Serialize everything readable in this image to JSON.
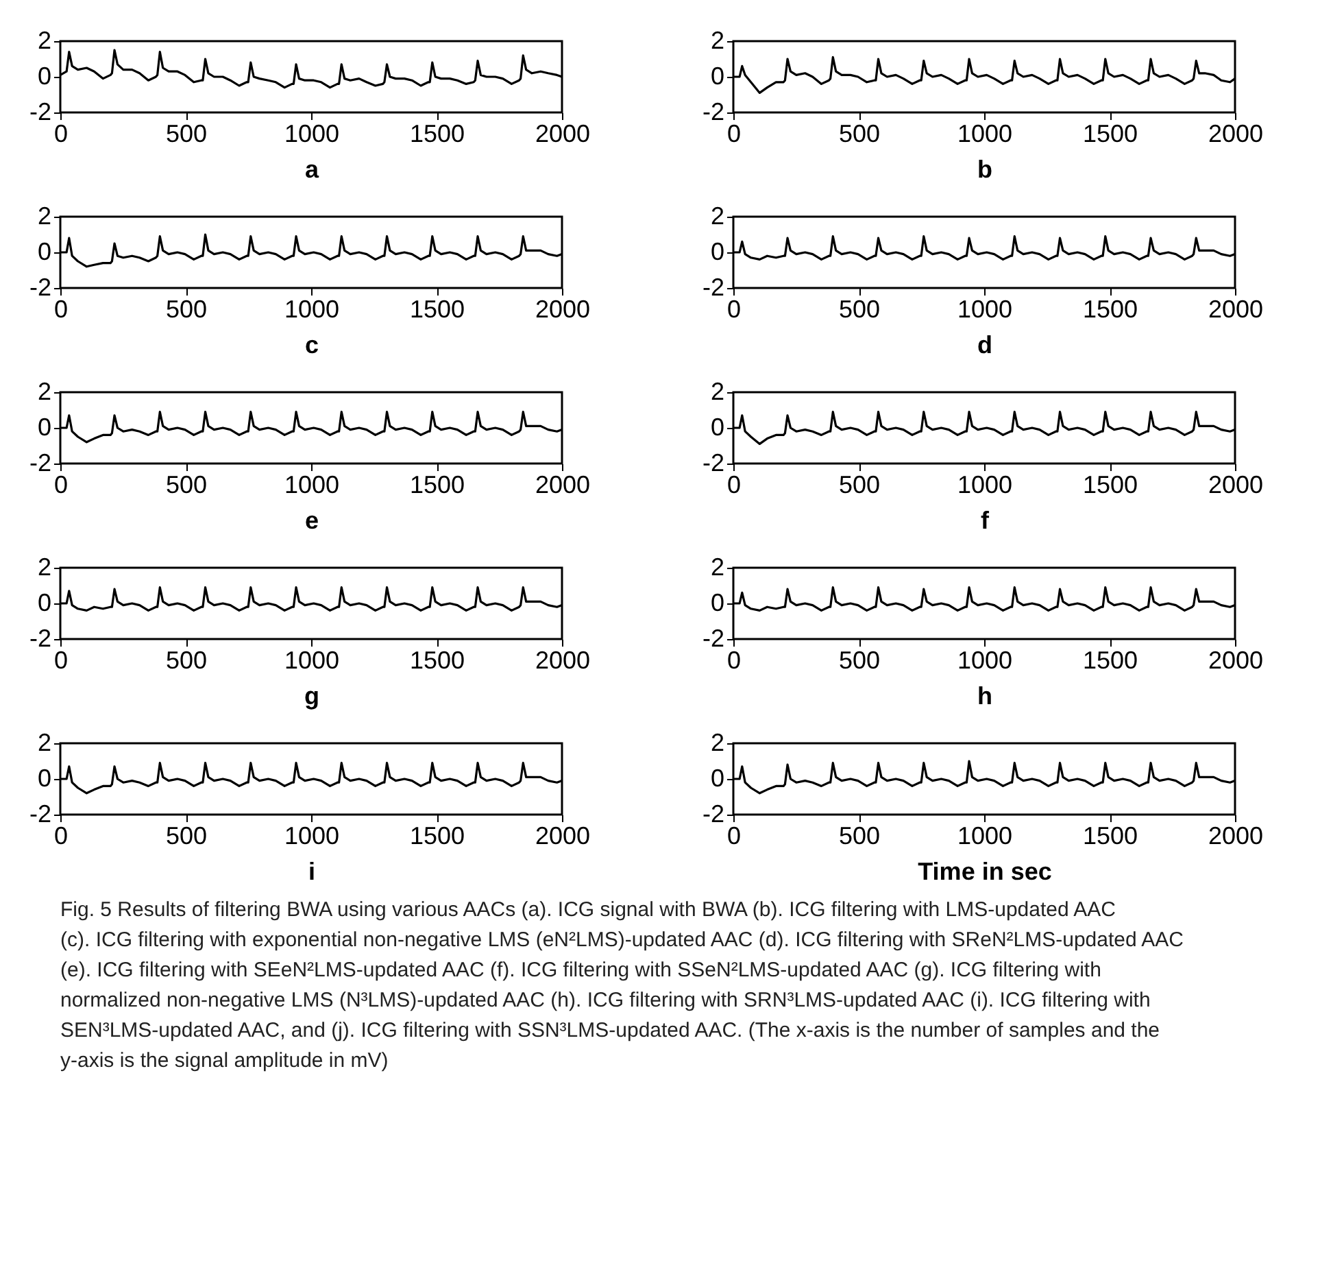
{
  "chart_data": [
    {
      "type": "line",
      "xlabel": "a",
      "x": [
        0,
        25,
        35,
        47,
        70,
        105,
        135,
        170,
        200,
        206,
        216,
        228,
        251,
        286,
        316,
        351,
        381,
        387,
        397,
        409,
        432,
        467,
        497,
        532,
        562,
        568,
        578,
        590,
        613,
        648,
        678,
        713,
        743,
        749,
        759,
        771,
        794,
        829,
        859,
        894,
        924,
        930,
        940,
        952,
        975,
        1010,
        1040,
        1075,
        1105,
        1111,
        1121,
        1133,
        1156,
        1191,
        1221,
        1256,
        1286,
        1292,
        1302,
        1314,
        1337,
        1372,
        1402,
        1437,
        1467,
        1473,
        1483,
        1495,
        1518,
        1553,
        1583,
        1618,
        1648,
        1654,
        1664,
        1676,
        1699,
        1734,
        1764,
        1799,
        1829,
        1835,
        1845,
        1857,
        1880,
        1915,
        1945,
        1980,
        2000
      ],
      "xlim": [
        0,
        2000
      ],
      "xticks": [
        0,
        500,
        1000,
        1500,
        2000
      ],
      "ylim": [
        -2,
        2
      ],
      "yticks": [
        -2,
        0,
        2
      ],
      "series": [
        {
          "color": "#000000",
          "values": [
            0.1,
            0.3,
            1.4,
            0.6,
            0.4,
            0.5,
            0.3,
            -0.1,
            0.1,
            0.2,
            1.5,
            0.7,
            0.4,
            0.4,
            0.2,
            -0.2,
            0.0,
            0.1,
            1.4,
            0.5,
            0.3,
            0.3,
            0.1,
            -0.3,
            -0.2,
            -0.2,
            1.0,
            0.2,
            0.0,
            0.0,
            -0.2,
            -0.5,
            -0.3,
            -0.3,
            0.8,
            0.0,
            -0.1,
            -0.2,
            -0.3,
            -0.6,
            -0.4,
            -0.4,
            0.7,
            -0.1,
            -0.2,
            -0.2,
            -0.3,
            -0.6,
            -0.4,
            -0.4,
            0.7,
            -0.1,
            -0.2,
            -0.1,
            -0.3,
            -0.5,
            -0.4,
            -0.3,
            0.7,
            0.0,
            -0.1,
            -0.1,
            -0.2,
            -0.5,
            -0.3,
            -0.3,
            0.8,
            0.0,
            -0.1,
            -0.1,
            -0.2,
            -0.4,
            -0.3,
            -0.2,
            0.9,
            0.1,
            0.0,
            0.0,
            -0.1,
            -0.4,
            -0.2,
            -0.1,
            1.2,
            0.4,
            0.2,
            0.3,
            0.2,
            0.1,
            0.0
          ]
        }
      ]
    },
    {
      "type": "line",
      "xlabel": "b",
      "x": [
        0,
        25,
        35,
        47,
        70,
        105,
        135,
        170,
        200,
        206,
        216,
        228,
        251,
        286,
        316,
        351,
        381,
        387,
        397,
        409,
        432,
        467,
        497,
        532,
        562,
        568,
        578,
        590,
        613,
        648,
        678,
        713,
        743,
        749,
        759,
        771,
        794,
        829,
        859,
        894,
        924,
        930,
        940,
        952,
        975,
        1010,
        1040,
        1075,
        1105,
        1111,
        1121,
        1133,
        1156,
        1191,
        1221,
        1256,
        1286,
        1292,
        1302,
        1314,
        1337,
        1372,
        1402,
        1437,
        1467,
        1473,
        1483,
        1495,
        1518,
        1553,
        1583,
        1618,
        1648,
        1654,
        1664,
        1676,
        1699,
        1734,
        1764,
        1799,
        1829,
        1835,
        1845,
        1857,
        1880,
        1915,
        1945,
        1980,
        2000
      ],
      "xlim": [
        0,
        2000
      ],
      "xticks": [
        0,
        500,
        1000,
        1500,
        2000
      ],
      "ylim": [
        -2,
        2
      ],
      "yticks": [
        -2,
        0,
        2
      ],
      "series": [
        {
          "color": "#000000",
          "values": [
            0.0,
            0.0,
            0.6,
            0.1,
            -0.3,
            -0.9,
            -0.6,
            -0.3,
            -0.3,
            -0.2,
            1.0,
            0.3,
            0.1,
            0.2,
            0.0,
            -0.4,
            -0.2,
            -0.1,
            1.1,
            0.3,
            0.1,
            0.1,
            0.0,
            -0.3,
            -0.2,
            -0.2,
            1.0,
            0.2,
            0.0,
            0.1,
            -0.1,
            -0.4,
            -0.2,
            -0.2,
            0.9,
            0.2,
            0.0,
            0.1,
            -0.1,
            -0.4,
            -0.2,
            -0.2,
            1.0,
            0.2,
            0.0,
            0.1,
            -0.1,
            -0.4,
            -0.2,
            -0.2,
            0.9,
            0.2,
            0.0,
            0.1,
            -0.1,
            -0.4,
            -0.2,
            -0.2,
            1.0,
            0.2,
            0.0,
            0.1,
            -0.1,
            -0.4,
            -0.2,
            -0.2,
            1.0,
            0.2,
            0.0,
            0.1,
            -0.1,
            -0.4,
            -0.2,
            -0.2,
            1.0,
            0.2,
            0.0,
            0.1,
            -0.1,
            -0.4,
            -0.2,
            -0.1,
            0.9,
            0.2,
            0.2,
            0.1,
            -0.2,
            -0.3,
            -0.1
          ]
        }
      ]
    },
    {
      "type": "line",
      "xlabel": "c",
      "x": [
        0,
        25,
        35,
        47,
        70,
        105,
        135,
        170,
        200,
        206,
        216,
        228,
        251,
        286,
        316,
        351,
        381,
        387,
        397,
        409,
        432,
        467,
        497,
        532,
        562,
        568,
        578,
        590,
        613,
        648,
        678,
        713,
        743,
        749,
        759,
        771,
        794,
        829,
        859,
        894,
        924,
        930,
        940,
        952,
        975,
        1010,
        1040,
        1075,
        1105,
        1111,
        1121,
        1133,
        1156,
        1191,
        1221,
        1256,
        1286,
        1292,
        1302,
        1314,
        1337,
        1372,
        1402,
        1437,
        1467,
        1473,
        1483,
        1495,
        1518,
        1553,
        1583,
        1618,
        1648,
        1654,
        1664,
        1676,
        1699,
        1734,
        1764,
        1799,
        1829,
        1835,
        1845,
        1857,
        1880,
        1915,
        1945,
        1980,
        2000
      ],
      "xlim": [
        0,
        2000
      ],
      "xticks": [
        0,
        500,
        1000,
        1500,
        2000
      ],
      "ylim": [
        -2,
        2
      ],
      "yticks": [
        -2,
        0,
        2
      ],
      "series": [
        {
          "color": "#000000",
          "values": [
            0.0,
            0.0,
            0.8,
            -0.2,
            -0.5,
            -0.8,
            -0.7,
            -0.6,
            -0.6,
            -0.5,
            0.5,
            -0.2,
            -0.3,
            -0.2,
            -0.3,
            -0.5,
            -0.3,
            -0.2,
            0.9,
            0.1,
            -0.1,
            0.0,
            -0.1,
            -0.4,
            -0.2,
            -0.2,
            1.0,
            0.1,
            -0.1,
            0.0,
            -0.1,
            -0.4,
            -0.2,
            -0.2,
            0.9,
            0.1,
            -0.1,
            0.0,
            -0.1,
            -0.4,
            -0.2,
            -0.2,
            0.9,
            0.1,
            -0.1,
            0.0,
            -0.1,
            -0.4,
            -0.2,
            -0.2,
            0.9,
            0.1,
            -0.1,
            0.0,
            -0.1,
            -0.4,
            -0.2,
            -0.2,
            0.9,
            0.1,
            -0.1,
            0.0,
            -0.1,
            -0.4,
            -0.2,
            -0.2,
            0.9,
            0.1,
            -0.1,
            0.0,
            -0.1,
            -0.4,
            -0.2,
            -0.2,
            0.9,
            0.1,
            -0.1,
            0.0,
            -0.1,
            -0.4,
            -0.2,
            -0.1,
            0.9,
            0.1,
            0.1,
            0.1,
            -0.1,
            -0.2,
            -0.1
          ]
        }
      ]
    },
    {
      "type": "line",
      "xlabel": "d",
      "x": [
        0,
        25,
        35,
        47,
        70,
        105,
        135,
        170,
        200,
        206,
        216,
        228,
        251,
        286,
        316,
        351,
        381,
        387,
        397,
        409,
        432,
        467,
        497,
        532,
        562,
        568,
        578,
        590,
        613,
        648,
        678,
        713,
        743,
        749,
        759,
        771,
        794,
        829,
        859,
        894,
        924,
        930,
        940,
        952,
        975,
        1010,
        1040,
        1075,
        1105,
        1111,
        1121,
        1133,
        1156,
        1191,
        1221,
        1256,
        1286,
        1292,
        1302,
        1314,
        1337,
        1372,
        1402,
        1437,
        1467,
        1473,
        1483,
        1495,
        1518,
        1553,
        1583,
        1618,
        1648,
        1654,
        1664,
        1676,
        1699,
        1734,
        1764,
        1799,
        1829,
        1835,
        1845,
        1857,
        1880,
        1915,
        1945,
        1980,
        2000
      ],
      "xlim": [
        0,
        2000
      ],
      "xticks": [
        0,
        500,
        1000,
        1500,
        2000
      ],
      "ylim": [
        -2,
        2
      ],
      "yticks": [
        -2,
        0,
        2
      ],
      "series": [
        {
          "color": "#000000",
          "values": [
            0.0,
            0.0,
            0.6,
            -0.1,
            -0.3,
            -0.4,
            -0.2,
            -0.3,
            -0.2,
            -0.2,
            0.8,
            0.1,
            -0.1,
            0.0,
            -0.1,
            -0.4,
            -0.2,
            -0.2,
            0.9,
            0.1,
            -0.1,
            0.0,
            -0.1,
            -0.4,
            -0.2,
            -0.2,
            0.8,
            0.1,
            -0.1,
            0.0,
            -0.1,
            -0.4,
            -0.2,
            -0.2,
            0.9,
            0.1,
            -0.1,
            0.0,
            -0.1,
            -0.4,
            -0.2,
            -0.2,
            0.8,
            0.1,
            -0.1,
            0.0,
            -0.1,
            -0.4,
            -0.2,
            -0.2,
            0.9,
            0.1,
            -0.1,
            0.0,
            -0.1,
            -0.4,
            -0.2,
            -0.2,
            0.8,
            0.1,
            -0.1,
            0.0,
            -0.1,
            -0.4,
            -0.2,
            -0.2,
            0.9,
            0.1,
            -0.1,
            0.0,
            -0.1,
            -0.4,
            -0.2,
            -0.2,
            0.8,
            0.1,
            -0.1,
            0.0,
            -0.1,
            -0.4,
            -0.2,
            -0.1,
            0.8,
            0.1,
            0.1,
            0.1,
            -0.1,
            -0.2,
            -0.1
          ]
        }
      ]
    },
    {
      "type": "line",
      "xlabel": "e",
      "x": [
        0,
        25,
        35,
        47,
        70,
        105,
        135,
        170,
        200,
        206,
        216,
        228,
        251,
        286,
        316,
        351,
        381,
        387,
        397,
        409,
        432,
        467,
        497,
        532,
        562,
        568,
        578,
        590,
        613,
        648,
        678,
        713,
        743,
        749,
        759,
        771,
        794,
        829,
        859,
        894,
        924,
        930,
        940,
        952,
        975,
        1010,
        1040,
        1075,
        1105,
        1111,
        1121,
        1133,
        1156,
        1191,
        1221,
        1256,
        1286,
        1292,
        1302,
        1314,
        1337,
        1372,
        1402,
        1437,
        1467,
        1473,
        1483,
        1495,
        1518,
        1553,
        1583,
        1618,
        1648,
        1654,
        1664,
        1676,
        1699,
        1734,
        1764,
        1799,
        1829,
        1835,
        1845,
        1857,
        1880,
        1915,
        1945,
        1980,
        2000
      ],
      "xlim": [
        0,
        2000
      ],
      "xticks": [
        0,
        500,
        1000,
        1500,
        2000
      ],
      "ylim": [
        -2,
        2
      ],
      "yticks": [
        -2,
        0,
        2
      ],
      "series": [
        {
          "color": "#000000",
          "values": [
            0.0,
            0.0,
            0.7,
            -0.2,
            -0.5,
            -0.8,
            -0.6,
            -0.4,
            -0.4,
            -0.3,
            0.7,
            0.0,
            -0.2,
            -0.1,
            -0.2,
            -0.4,
            -0.2,
            -0.2,
            0.9,
            0.1,
            -0.1,
            0.0,
            -0.1,
            -0.4,
            -0.2,
            -0.2,
            0.9,
            0.1,
            -0.1,
            0.0,
            -0.1,
            -0.4,
            -0.2,
            -0.2,
            0.9,
            0.1,
            -0.1,
            0.0,
            -0.1,
            -0.4,
            -0.2,
            -0.2,
            0.9,
            0.1,
            -0.1,
            0.0,
            -0.1,
            -0.4,
            -0.2,
            -0.2,
            0.9,
            0.1,
            -0.1,
            0.0,
            -0.1,
            -0.4,
            -0.2,
            -0.2,
            0.9,
            0.1,
            -0.1,
            0.0,
            -0.1,
            -0.4,
            -0.2,
            -0.2,
            0.9,
            0.1,
            -0.1,
            0.0,
            -0.1,
            -0.4,
            -0.2,
            -0.2,
            0.9,
            0.1,
            -0.1,
            0.0,
            -0.1,
            -0.4,
            -0.2,
            -0.1,
            0.9,
            0.1,
            0.1,
            0.1,
            -0.1,
            -0.2,
            -0.1
          ]
        }
      ]
    },
    {
      "type": "line",
      "xlabel": "f",
      "x": [
        0,
        25,
        35,
        47,
        70,
        105,
        135,
        170,
        200,
        206,
        216,
        228,
        251,
        286,
        316,
        351,
        381,
        387,
        397,
        409,
        432,
        467,
        497,
        532,
        562,
        568,
        578,
        590,
        613,
        648,
        678,
        713,
        743,
        749,
        759,
        771,
        794,
        829,
        859,
        894,
        924,
        930,
        940,
        952,
        975,
        1010,
        1040,
        1075,
        1105,
        1111,
        1121,
        1133,
        1156,
        1191,
        1221,
        1256,
        1286,
        1292,
        1302,
        1314,
        1337,
        1372,
        1402,
        1437,
        1467,
        1473,
        1483,
        1495,
        1518,
        1553,
        1583,
        1618,
        1648,
        1654,
        1664,
        1676,
        1699,
        1734,
        1764,
        1799,
        1829,
        1835,
        1845,
        1857,
        1880,
        1915,
        1945,
        1980,
        2000
      ],
      "xlim": [
        0,
        2000
      ],
      "xticks": [
        0,
        500,
        1000,
        1500,
        2000
      ],
      "ylim": [
        -2,
        2
      ],
      "yticks": [
        -2,
        0,
        2
      ],
      "series": [
        {
          "color": "#000000",
          "values": [
            0.0,
            0.0,
            0.7,
            -0.2,
            -0.5,
            -0.9,
            -0.6,
            -0.4,
            -0.4,
            -0.3,
            0.7,
            0.0,
            -0.2,
            -0.1,
            -0.2,
            -0.4,
            -0.2,
            -0.2,
            0.9,
            0.1,
            -0.1,
            0.0,
            -0.1,
            -0.4,
            -0.2,
            -0.2,
            0.9,
            0.1,
            -0.1,
            0.0,
            -0.1,
            -0.4,
            -0.2,
            -0.2,
            0.9,
            0.1,
            -0.1,
            0.0,
            -0.1,
            -0.4,
            -0.2,
            -0.2,
            0.9,
            0.1,
            -0.1,
            0.0,
            -0.1,
            -0.4,
            -0.2,
            -0.2,
            0.9,
            0.1,
            -0.1,
            0.0,
            -0.1,
            -0.4,
            -0.2,
            -0.2,
            0.9,
            0.1,
            -0.1,
            0.0,
            -0.1,
            -0.4,
            -0.2,
            -0.2,
            0.9,
            0.1,
            -0.1,
            0.0,
            -0.1,
            -0.4,
            -0.2,
            -0.2,
            0.9,
            0.1,
            -0.1,
            0.0,
            -0.1,
            -0.4,
            -0.2,
            -0.1,
            0.9,
            0.1,
            0.1,
            0.1,
            -0.1,
            -0.2,
            -0.1
          ]
        }
      ]
    },
    {
      "type": "line",
      "xlabel": "g",
      "x": [
        0,
        25,
        35,
        47,
        70,
        105,
        135,
        170,
        200,
        206,
        216,
        228,
        251,
        286,
        316,
        351,
        381,
        387,
        397,
        409,
        432,
        467,
        497,
        532,
        562,
        568,
        578,
        590,
        613,
        648,
        678,
        713,
        743,
        749,
        759,
        771,
        794,
        829,
        859,
        894,
        924,
        930,
        940,
        952,
        975,
        1010,
        1040,
        1075,
        1105,
        1111,
        1121,
        1133,
        1156,
        1191,
        1221,
        1256,
        1286,
        1292,
        1302,
        1314,
        1337,
        1372,
        1402,
        1437,
        1467,
        1473,
        1483,
        1495,
        1518,
        1553,
        1583,
        1618,
        1648,
        1654,
        1664,
        1676,
        1699,
        1734,
        1764,
        1799,
        1829,
        1835,
        1845,
        1857,
        1880,
        1915,
        1945,
        1980,
        2000
      ],
      "xlim": [
        0,
        2000
      ],
      "xticks": [
        0,
        500,
        1000,
        1500,
        2000
      ],
      "ylim": [
        -2,
        2
      ],
      "yticks": [
        -2,
        0,
        2
      ],
      "series": [
        {
          "color": "#000000",
          "values": [
            0.0,
            0.0,
            0.7,
            -0.1,
            -0.3,
            -0.4,
            -0.2,
            -0.3,
            -0.2,
            -0.2,
            0.8,
            0.1,
            -0.1,
            0.0,
            -0.1,
            -0.4,
            -0.2,
            -0.2,
            0.9,
            0.1,
            -0.1,
            0.0,
            -0.1,
            -0.4,
            -0.2,
            -0.2,
            0.9,
            0.1,
            -0.1,
            0.0,
            -0.1,
            -0.4,
            -0.2,
            -0.2,
            0.9,
            0.1,
            -0.1,
            0.0,
            -0.1,
            -0.4,
            -0.2,
            -0.2,
            0.9,
            0.1,
            -0.1,
            0.0,
            -0.1,
            -0.4,
            -0.2,
            -0.2,
            0.9,
            0.1,
            -0.1,
            0.0,
            -0.1,
            -0.4,
            -0.2,
            -0.2,
            0.9,
            0.1,
            -0.1,
            0.0,
            -0.1,
            -0.4,
            -0.2,
            -0.2,
            0.9,
            0.1,
            -0.1,
            0.0,
            -0.1,
            -0.4,
            -0.2,
            -0.2,
            0.9,
            0.1,
            -0.1,
            0.0,
            -0.1,
            -0.4,
            -0.2,
            -0.1,
            0.9,
            0.1,
            0.1,
            0.1,
            -0.1,
            -0.2,
            -0.1
          ]
        }
      ]
    },
    {
      "type": "line",
      "xlabel": "h",
      "x": [
        0,
        25,
        35,
        47,
        70,
        105,
        135,
        170,
        200,
        206,
        216,
        228,
        251,
        286,
        316,
        351,
        381,
        387,
        397,
        409,
        432,
        467,
        497,
        532,
        562,
        568,
        578,
        590,
        613,
        648,
        678,
        713,
        743,
        749,
        759,
        771,
        794,
        829,
        859,
        894,
        924,
        930,
        940,
        952,
        975,
        1010,
        1040,
        1075,
        1105,
        1111,
        1121,
        1133,
        1156,
        1191,
        1221,
        1256,
        1286,
        1292,
        1302,
        1314,
        1337,
        1372,
        1402,
        1437,
        1467,
        1473,
        1483,
        1495,
        1518,
        1553,
        1583,
        1618,
        1648,
        1654,
        1664,
        1676,
        1699,
        1734,
        1764,
        1799,
        1829,
        1835,
        1845,
        1857,
        1880,
        1915,
        1945,
        1980,
        2000
      ],
      "xlim": [
        0,
        2000
      ],
      "xticks": [
        0,
        500,
        1000,
        1500,
        2000
      ],
      "ylim": [
        -2,
        2
      ],
      "yticks": [
        -2,
        0,
        2
      ],
      "series": [
        {
          "color": "#000000",
          "values": [
            0.0,
            0.0,
            0.6,
            -0.1,
            -0.3,
            -0.4,
            -0.2,
            -0.3,
            -0.2,
            -0.2,
            0.8,
            0.1,
            -0.1,
            0.0,
            -0.1,
            -0.4,
            -0.2,
            -0.2,
            0.9,
            0.1,
            -0.1,
            0.0,
            -0.1,
            -0.4,
            -0.2,
            -0.2,
            0.9,
            0.1,
            -0.1,
            0.0,
            -0.1,
            -0.4,
            -0.2,
            -0.2,
            0.8,
            0.1,
            -0.1,
            0.0,
            -0.1,
            -0.4,
            -0.2,
            -0.2,
            0.9,
            0.1,
            -0.1,
            0.0,
            -0.1,
            -0.4,
            -0.2,
            -0.2,
            0.9,
            0.1,
            -0.1,
            0.0,
            -0.1,
            -0.4,
            -0.2,
            -0.2,
            0.8,
            0.1,
            -0.1,
            0.0,
            -0.1,
            -0.4,
            -0.2,
            -0.2,
            0.9,
            0.1,
            -0.1,
            0.0,
            -0.1,
            -0.4,
            -0.2,
            -0.2,
            0.9,
            0.1,
            -0.1,
            0.0,
            -0.1,
            -0.4,
            -0.2,
            -0.1,
            0.8,
            0.1,
            0.1,
            0.1,
            -0.1,
            -0.2,
            -0.1
          ]
        }
      ]
    },
    {
      "type": "line",
      "xlabel": "i",
      "x": [
        0,
        25,
        35,
        47,
        70,
        105,
        135,
        170,
        200,
        206,
        216,
        228,
        251,
        286,
        316,
        351,
        381,
        387,
        397,
        409,
        432,
        467,
        497,
        532,
        562,
        568,
        578,
        590,
        613,
        648,
        678,
        713,
        743,
        749,
        759,
        771,
        794,
        829,
        859,
        894,
        924,
        930,
        940,
        952,
        975,
        1010,
        1040,
        1075,
        1105,
        1111,
        1121,
        1133,
        1156,
        1191,
        1221,
        1256,
        1286,
        1292,
        1302,
        1314,
        1337,
        1372,
        1402,
        1437,
        1467,
        1473,
        1483,
        1495,
        1518,
        1553,
        1583,
        1618,
        1648,
        1654,
        1664,
        1676,
        1699,
        1734,
        1764,
        1799,
        1829,
        1835,
        1845,
        1857,
        1880,
        1915,
        1945,
        1980,
        2000
      ],
      "xlim": [
        0,
        2000
      ],
      "xticks": [
        0,
        500,
        1000,
        1500,
        2000
      ],
      "ylim": [
        -2,
        2
      ],
      "yticks": [
        -2,
        0,
        2
      ],
      "series": [
        {
          "color": "#000000",
          "values": [
            0.0,
            0.0,
            0.7,
            -0.2,
            -0.5,
            -0.8,
            -0.6,
            -0.4,
            -0.4,
            -0.3,
            0.7,
            0.0,
            -0.2,
            -0.1,
            -0.2,
            -0.4,
            -0.2,
            -0.2,
            0.9,
            0.1,
            -0.1,
            0.0,
            -0.1,
            -0.4,
            -0.2,
            -0.2,
            0.9,
            0.1,
            -0.1,
            0.0,
            -0.1,
            -0.4,
            -0.2,
            -0.2,
            0.9,
            0.1,
            -0.1,
            0.0,
            -0.1,
            -0.4,
            -0.2,
            -0.2,
            0.9,
            0.1,
            -0.1,
            0.0,
            -0.1,
            -0.4,
            -0.2,
            -0.2,
            0.9,
            0.1,
            -0.1,
            0.0,
            -0.1,
            -0.4,
            -0.2,
            -0.2,
            0.9,
            0.1,
            -0.1,
            0.0,
            -0.1,
            -0.4,
            -0.2,
            -0.2,
            0.9,
            0.1,
            -0.1,
            0.0,
            -0.1,
            -0.4,
            -0.2,
            -0.2,
            0.9,
            0.1,
            -0.1,
            0.0,
            -0.1,
            -0.4,
            -0.2,
            -0.1,
            0.9,
            0.1,
            0.1,
            0.1,
            -0.1,
            -0.2,
            -0.1
          ]
        }
      ]
    },
    {
      "type": "line",
      "xlabel": "Time in sec",
      "x": [
        0,
        25,
        35,
        47,
        70,
        105,
        135,
        170,
        200,
        206,
        216,
        228,
        251,
        286,
        316,
        351,
        381,
        387,
        397,
        409,
        432,
        467,
        497,
        532,
        562,
        568,
        578,
        590,
        613,
        648,
        678,
        713,
        743,
        749,
        759,
        771,
        794,
        829,
        859,
        894,
        924,
        930,
        940,
        952,
        975,
        1010,
        1040,
        1075,
        1105,
        1111,
        1121,
        1133,
        1156,
        1191,
        1221,
        1256,
        1286,
        1292,
        1302,
        1314,
        1337,
        1372,
        1402,
        1437,
        1467,
        1473,
        1483,
        1495,
        1518,
        1553,
        1583,
        1618,
        1648,
        1654,
        1664,
        1676,
        1699,
        1734,
        1764,
        1799,
        1829,
        1835,
        1845,
        1857,
        1880,
        1915,
        1945,
        1980,
        2000
      ],
      "xlim": [
        0,
        2000
      ],
      "xticks": [
        0,
        500,
        1000,
        1500,
        2000
      ],
      "ylim": [
        -2,
        2
      ],
      "yticks": [
        -2,
        0,
        2
      ],
      "series": [
        {
          "color": "#000000",
          "values": [
            0.0,
            0.0,
            0.7,
            -0.2,
            -0.5,
            -0.8,
            -0.6,
            -0.4,
            -0.4,
            -0.3,
            0.8,
            0.0,
            -0.2,
            -0.1,
            -0.2,
            -0.4,
            -0.2,
            -0.2,
            0.9,
            0.1,
            -0.1,
            0.0,
            -0.1,
            -0.4,
            -0.2,
            -0.2,
            0.9,
            0.1,
            -0.1,
            0.0,
            -0.1,
            -0.4,
            -0.2,
            -0.2,
            0.9,
            0.1,
            -0.1,
            0.0,
            -0.1,
            -0.4,
            -0.2,
            -0.2,
            1.0,
            0.1,
            -0.1,
            0.0,
            -0.1,
            -0.4,
            -0.2,
            -0.2,
            0.9,
            0.1,
            -0.1,
            0.0,
            -0.1,
            -0.4,
            -0.2,
            -0.2,
            0.9,
            0.1,
            -0.1,
            0.0,
            -0.1,
            -0.4,
            -0.2,
            -0.2,
            0.9,
            0.1,
            -0.1,
            0.0,
            -0.1,
            -0.4,
            -0.2,
            -0.2,
            0.9,
            0.1,
            -0.1,
            0.0,
            -0.1,
            -0.4,
            -0.2,
            -0.1,
            0.9,
            0.1,
            0.1,
            0.1,
            -0.1,
            -0.2,
            -0.1
          ]
        }
      ],
      "annotations": [
        "Fig. 5  Results of filtering BWA using various AACs (a). ICG signal with BWA (b). ICG filtering with LMS-updated AAC (c). ICG filtering with exponential non-negative LMS (eN²LMS)-updated AAC (d). ICG filtering with SReN²LMS-updated AAC (e). ICG filtering with SEeN²LMS-updated AAC (f). ICG filtering with SSeN²LMS-updated AAC (g). ICG filtering with normalized non-negative LMS (N³LMS)-updated AAC (h). ICG filtering with SRN³LMS-updated AAC (i). ICG filtering with SEN³LMS-updated AAC, and (j). ICG filtering with SSN³LMS-updated AAC. (The x-axis is the number of samples and the  y-axis is the signal amplitude in mV)"
      ]
    }
  ]
}
